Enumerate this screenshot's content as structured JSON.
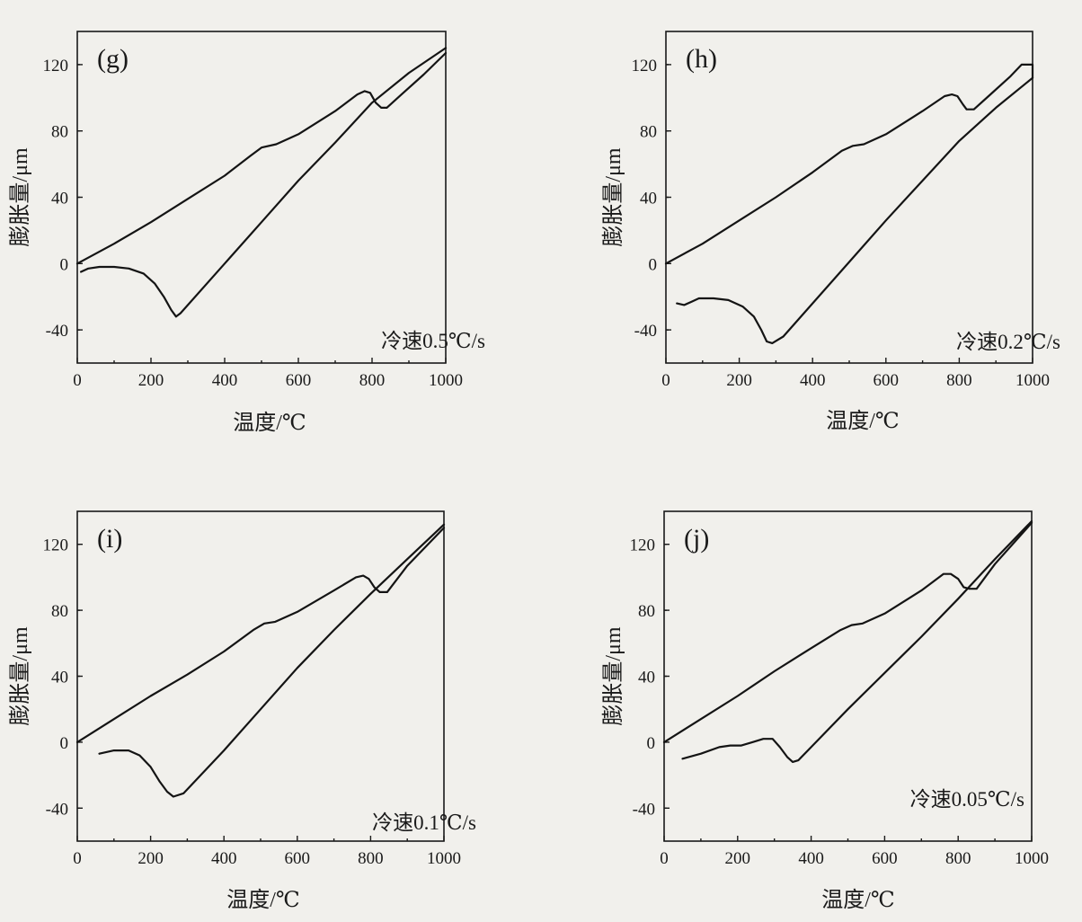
{
  "chart_data": [
    {
      "type": "line",
      "panel_label": "(g)",
      "annotation": "冷速0.5℃/s",
      "xlabel": "温度/℃",
      "ylabel": "膨胀量/μm",
      "xlim": [
        0,
        1000
      ],
      "ylim": [
        -60,
        140
      ],
      "x_ticks": [
        0,
        200,
        400,
        600,
        800,
        1000
      ],
      "y_ticks": [
        -40,
        0,
        40,
        80,
        120
      ],
      "legend": "none",
      "grid": false,
      "series": [
        {
          "points": [
            [
              10,
              -5
            ],
            [
              30,
              -3
            ],
            [
              60,
              -2
            ],
            [
              100,
              -2
            ],
            [
              140,
              -3
            ],
            [
              180,
              -6
            ],
            [
              210,
              -12
            ],
            [
              235,
              -20
            ],
            [
              255,
              -28
            ],
            [
              268,
              -32
            ],
            [
              280,
              -30
            ],
            [
              400,
              0
            ],
            [
              500,
              25
            ],
            [
              600,
              50
            ],
            [
              700,
              73
            ],
            [
              800,
              97
            ],
            [
              900,
              115
            ],
            [
              1000,
              130
            ]
          ]
        },
        {
          "points": [
            [
              0,
              0
            ],
            [
              100,
              12
            ],
            [
              200,
              25
            ],
            [
              300,
              39
            ],
            [
              400,
              53
            ],
            [
              470,
              65
            ],
            [
              500,
              70
            ],
            [
              540,
              72
            ],
            [
              600,
              78
            ],
            [
              700,
              92
            ],
            [
              760,
              102
            ],
            [
              780,
              104
            ],
            [
              795,
              103
            ],
            [
              810,
              97
            ],
            [
              825,
              94
            ],
            [
              840,
              94
            ],
            [
              880,
              102
            ],
            [
              940,
              114
            ],
            [
              1000,
              127
            ]
          ]
        }
      ]
    },
    {
      "type": "line",
      "panel_label": "(h)",
      "annotation": "冷速0.2℃/s",
      "xlabel": "温度/℃",
      "ylabel": "膨胀量/μm",
      "xlim": [
        0,
        1000
      ],
      "ylim": [
        -60,
        140
      ],
      "x_ticks": [
        0,
        200,
        400,
        600,
        800,
        1000
      ],
      "y_ticks": [
        -40,
        0,
        40,
        80,
        120
      ],
      "legend": "none",
      "grid": false,
      "series": [
        {
          "points": [
            [
              30,
              -24
            ],
            [
              50,
              -25
            ],
            [
              70,
              -23
            ],
            [
              90,
              -21
            ],
            [
              130,
              -21
            ],
            [
              170,
              -22
            ],
            [
              210,
              -26
            ],
            [
              240,
              -32
            ],
            [
              260,
              -40
            ],
            [
              275,
              -47
            ],
            [
              290,
              -48
            ],
            [
              320,
              -44
            ],
            [
              400,
              -24
            ],
            [
              500,
              1
            ],
            [
              600,
              26
            ],
            [
              700,
              50
            ],
            [
              800,
              74
            ],
            [
              900,
              94
            ],
            [
              1000,
              112
            ]
          ]
        },
        {
          "points": [
            [
              0,
              0
            ],
            [
              100,
              12
            ],
            [
              200,
              26
            ],
            [
              300,
              40
            ],
            [
              400,
              55
            ],
            [
              480,
              68
            ],
            [
              510,
              71
            ],
            [
              540,
              72
            ],
            [
              600,
              78
            ],
            [
              700,
              92
            ],
            [
              760,
              101
            ],
            [
              780,
              102
            ],
            [
              795,
              101
            ],
            [
              810,
              96
            ],
            [
              820,
              93
            ],
            [
              840,
              93
            ],
            [
              880,
              101
            ],
            [
              940,
              113
            ],
            [
              970,
              120
            ],
            [
              1000,
              120
            ],
            [
              1000,
              112
            ]
          ]
        }
      ]
    },
    {
      "type": "line",
      "panel_label": "(i)",
      "annotation": "冷速0.1℃/s",
      "xlabel": "温度/℃",
      "ylabel": "膨胀量/μm",
      "xlim": [
        0,
        1000
      ],
      "ylim": [
        -60,
        140
      ],
      "x_ticks": [
        0,
        200,
        400,
        600,
        800,
        1000
      ],
      "y_ticks": [
        -40,
        0,
        40,
        80,
        120
      ],
      "legend": "none",
      "grid": false,
      "series": [
        {
          "points": [
            [
              60,
              -7
            ],
            [
              100,
              -5
            ],
            [
              140,
              -5
            ],
            [
              170,
              -8
            ],
            [
              200,
              -15
            ],
            [
              225,
              -24
            ],
            [
              245,
              -30
            ],
            [
              262,
              -33
            ],
            [
              290,
              -31
            ],
            [
              400,
              -5
            ],
            [
              500,
              20
            ],
            [
              600,
              45
            ],
            [
              700,
              68
            ],
            [
              800,
              90
            ],
            [
              900,
              111
            ],
            [
              1000,
              132
            ]
          ]
        },
        {
          "points": [
            [
              0,
              0
            ],
            [
              100,
              14
            ],
            [
              200,
              28
            ],
            [
              300,
              41
            ],
            [
              400,
              55
            ],
            [
              480,
              68
            ],
            [
              510,
              72
            ],
            [
              540,
              73
            ],
            [
              600,
              79
            ],
            [
              700,
              92
            ],
            [
              760,
              100
            ],
            [
              780,
              101
            ],
            [
              795,
              99
            ],
            [
              810,
              94
            ],
            [
              825,
              91
            ],
            [
              845,
              91
            ],
            [
              900,
              107
            ],
            [
              1000,
              130
            ]
          ]
        }
      ]
    },
    {
      "type": "line",
      "panel_label": "(j)",
      "annotation": "冷速0.05℃/s",
      "xlabel": "温度/℃",
      "ylabel": "膨胀量/μm",
      "xlim": [
        0,
        1000
      ],
      "ylim": [
        -60,
        140
      ],
      "x_ticks": [
        0,
        200,
        400,
        600,
        800,
        1000
      ],
      "y_ticks": [
        -40,
        0,
        40,
        80,
        120
      ],
      "legend": "none",
      "grid": false,
      "series": [
        {
          "points": [
            [
              50,
              -10
            ],
            [
              100,
              -7
            ],
            [
              150,
              -3
            ],
            [
              180,
              -2
            ],
            [
              210,
              -2
            ],
            [
              240,
              0
            ],
            [
              270,
              2
            ],
            [
              295,
              2
            ],
            [
              315,
              -3
            ],
            [
              335,
              -9
            ],
            [
              350,
              -12
            ],
            [
              365,
              -11
            ],
            [
              400,
              -3
            ],
            [
              500,
              20
            ],
            [
              600,
              42
            ],
            [
              700,
              64
            ],
            [
              800,
              87
            ],
            [
              900,
              111
            ],
            [
              1000,
              134
            ]
          ]
        },
        {
          "points": [
            [
              0,
              0
            ],
            [
              100,
              14
            ],
            [
              200,
              28
            ],
            [
              300,
              43
            ],
            [
              400,
              57
            ],
            [
              480,
              68
            ],
            [
              510,
              71
            ],
            [
              540,
              72
            ],
            [
              600,
              78
            ],
            [
              700,
              92
            ],
            [
              760,
              102
            ],
            [
              780,
              102
            ],
            [
              800,
              99
            ],
            [
              815,
              94
            ],
            [
              830,
              93
            ],
            [
              850,
              93
            ],
            [
              900,
              108
            ],
            [
              1000,
              133
            ]
          ]
        }
      ]
    }
  ]
}
